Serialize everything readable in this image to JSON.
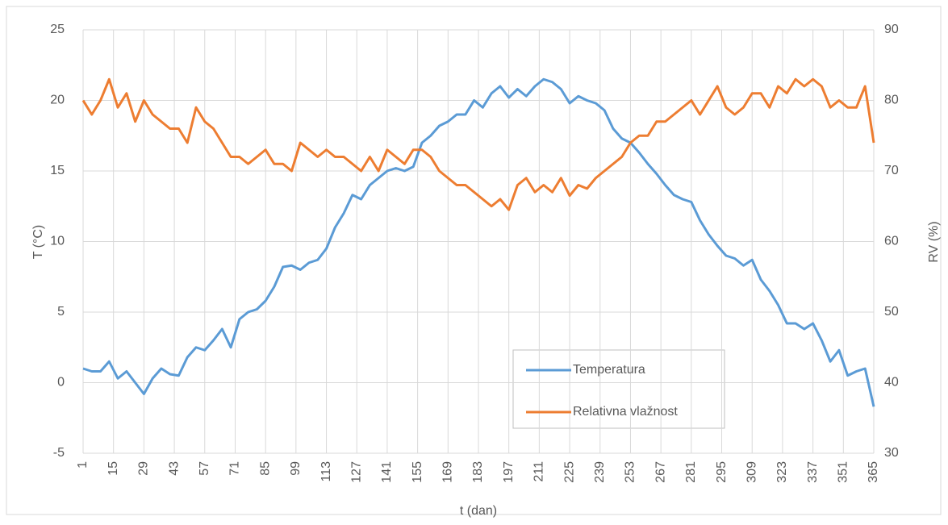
{
  "chart_data": {
    "type": "line",
    "x_label": "t (dan)",
    "y_label": "T (°C)",
    "y2_label": "RV (%)",
    "x": [
      1,
      5,
      9,
      13,
      17,
      21,
      25,
      29,
      33,
      37,
      41,
      45,
      49,
      53,
      57,
      61,
      65,
      69,
      73,
      77,
      81,
      85,
      89,
      93,
      97,
      101,
      105,
      109,
      113,
      117,
      121,
      125,
      129,
      133,
      137,
      141,
      145,
      149,
      153,
      157,
      161,
      165,
      169,
      173,
      177,
      181,
      185,
      189,
      193,
      197,
      201,
      205,
      209,
      213,
      217,
      221,
      225,
      229,
      233,
      237,
      241,
      245,
      249,
      253,
      257,
      261,
      265,
      269,
      273,
      277,
      281,
      285,
      289,
      293,
      297,
      301,
      305,
      309,
      313,
      317,
      321,
      325,
      329,
      333,
      337,
      341,
      345,
      349,
      353,
      357,
      361,
      365
    ],
    "series": [
      {
        "name": "Temperatura",
        "color": "#5b9bd5",
        "axis": "y",
        "values": [
          1.0,
          0.8,
          0.8,
          1.5,
          0.3,
          0.8,
          0.0,
          -0.8,
          0.3,
          1.0,
          0.6,
          0.5,
          1.8,
          2.5,
          2.3,
          3.0,
          3.8,
          2.5,
          4.5,
          5.0,
          5.2,
          5.8,
          6.8,
          8.2,
          8.3,
          8.0,
          8.5,
          8.7,
          9.5,
          11.0,
          12.0,
          13.3,
          13.0,
          14.0,
          14.5,
          15.0,
          15.2,
          15.0,
          15.3,
          17.0,
          17.5,
          18.2,
          18.5,
          19.0,
          19.0,
          20.0,
          19.5,
          20.5,
          21.0,
          20.2,
          20.8,
          20.3,
          21.0,
          21.5,
          21.3,
          20.8,
          19.8,
          20.3,
          20.0,
          19.8,
          19.3,
          18.0,
          17.3,
          17.0,
          16.3,
          15.5,
          14.8,
          14.0,
          13.3,
          13.0,
          12.8,
          11.5,
          10.5,
          9.7,
          9.0,
          8.8,
          8.3,
          8.7,
          7.3,
          6.5,
          5.5,
          4.2,
          4.2,
          3.8,
          4.2,
          3.0,
          1.5,
          2.3,
          0.5,
          0.8,
          1.0,
          -1.7
        ]
      },
      {
        "name": "Relativna vlažnost",
        "color": "#ed7d31",
        "axis": "y2",
        "values": [
          80,
          78,
          80,
          83,
          79,
          81,
          77,
          80,
          78,
          77,
          76,
          76,
          74,
          79,
          77,
          76,
          74,
          72,
          72,
          71,
          72,
          73,
          71,
          71,
          70,
          74,
          73,
          72,
          73,
          72,
          72,
          71,
          70,
          72,
          70,
          73,
          72,
          71,
          73,
          73,
          72,
          70,
          69,
          68,
          68,
          67,
          66,
          65,
          66,
          64.5,
          68,
          69,
          67,
          68,
          67,
          69,
          66.5,
          68,
          67.5,
          69,
          70,
          71,
          72,
          74,
          75,
          75,
          77,
          77,
          78,
          79,
          80,
          78,
          80,
          82,
          79,
          78,
          79,
          81,
          81,
          79,
          82,
          81,
          83,
          82,
          83,
          82,
          79,
          80,
          79,
          79,
          82,
          74
        ]
      }
    ],
    "xlim": [
      1,
      365
    ],
    "xticks": [
      1,
      15,
      29,
      43,
      57,
      71,
      85,
      99,
      113,
      127,
      141,
      155,
      169,
      183,
      197,
      211,
      225,
      239,
      253,
      267,
      281,
      295,
      309,
      323,
      337,
      351,
      365
    ],
    "ylim": [
      -5,
      25
    ],
    "yticks": [
      -5,
      0,
      5,
      10,
      15,
      20,
      25
    ],
    "y2lim": [
      30,
      90
    ],
    "y2ticks": [
      30,
      40,
      50,
      60,
      70,
      80,
      90
    ],
    "grid": true
  }
}
